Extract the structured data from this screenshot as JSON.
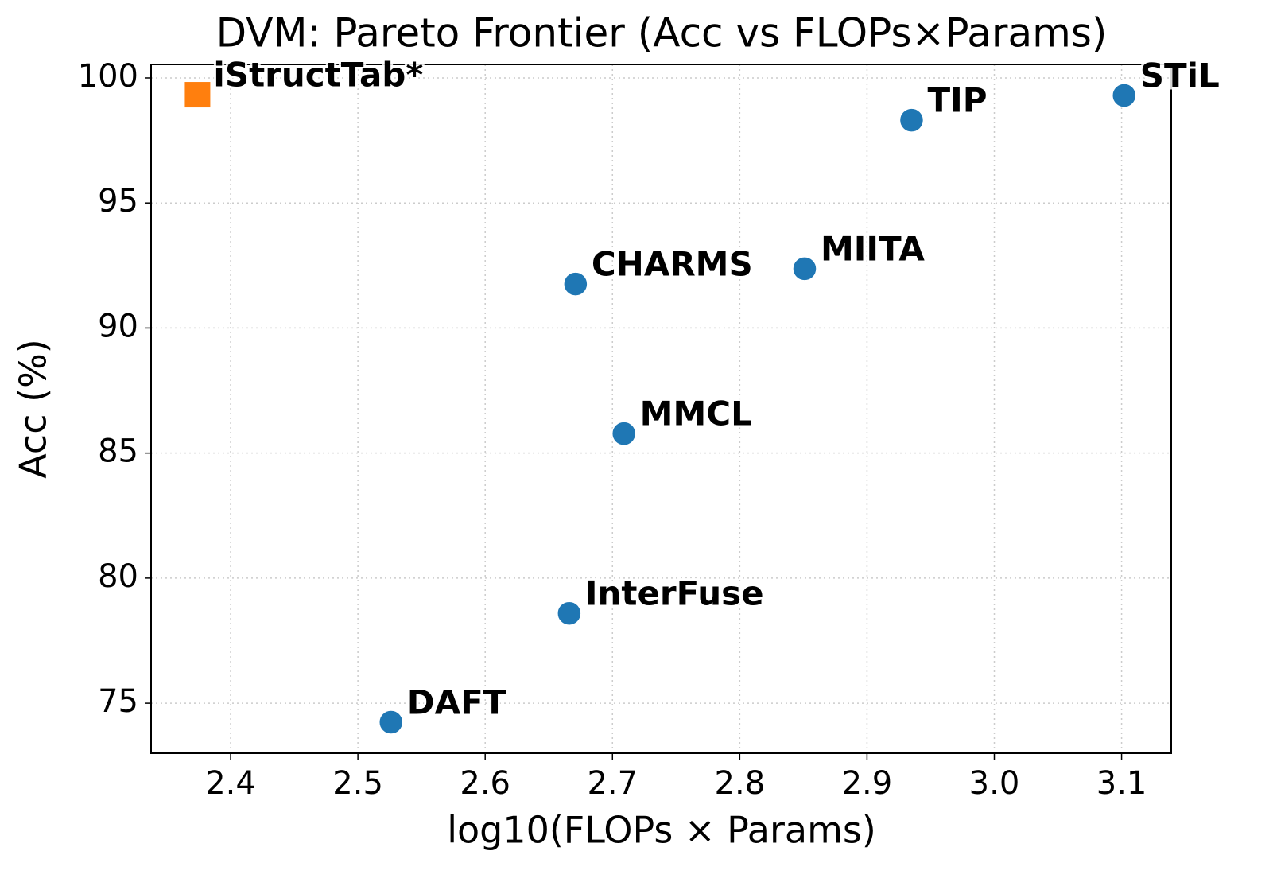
{
  "chart_data": {
    "type": "scatter",
    "title": "DVM: Pareto Frontier (Acc vs FLOPs×Params)",
    "x_label": "log10(FLOPs × Params)",
    "y_label": "Acc (%)",
    "points": [
      {
        "label": "iStructTab*",
        "x": 2.374,
        "y": 99.33,
        "color": "#ff7f0e",
        "marker": "square"
      },
      {
        "label": "STiL",
        "x": 3.102,
        "y": 99.3,
        "color": "#1f77b4",
        "marker": "circle"
      },
      {
        "label": "TIP",
        "x": 2.935,
        "y": 98.31,
        "color": "#1f77b4",
        "marker": "circle"
      },
      {
        "label": "MIITA",
        "x": 2.851,
        "y": 92.37,
        "color": "#1f77b4",
        "marker": "circle"
      },
      {
        "label": "CHARMS",
        "x": 2.671,
        "y": 91.76,
        "color": "#1f77b4",
        "marker": "circle"
      },
      {
        "label": "MMCL",
        "x": 2.709,
        "y": 85.78,
        "color": "#1f77b4",
        "marker": "circle"
      },
      {
        "label": "InterFuse",
        "x": 2.666,
        "y": 78.59,
        "color": "#1f77b4",
        "marker": "circle"
      },
      {
        "label": "DAFT",
        "x": 2.526,
        "y": 74.24,
        "color": "#1f77b4",
        "marker": "circle"
      }
    ],
    "xlim": [
      2.3375,
      3.139
    ],
    "ylim": [
      73.0,
      100.54
    ],
    "xticks": [
      2.4,
      2.5,
      2.6,
      2.7,
      2.8,
      2.9,
      {
        "value": 3.0,
        "label": "3.0"
      },
      3.1
    ],
    "yticks": [
      75,
      80,
      85,
      90,
      95,
      100
    ],
    "grid": true
  }
}
